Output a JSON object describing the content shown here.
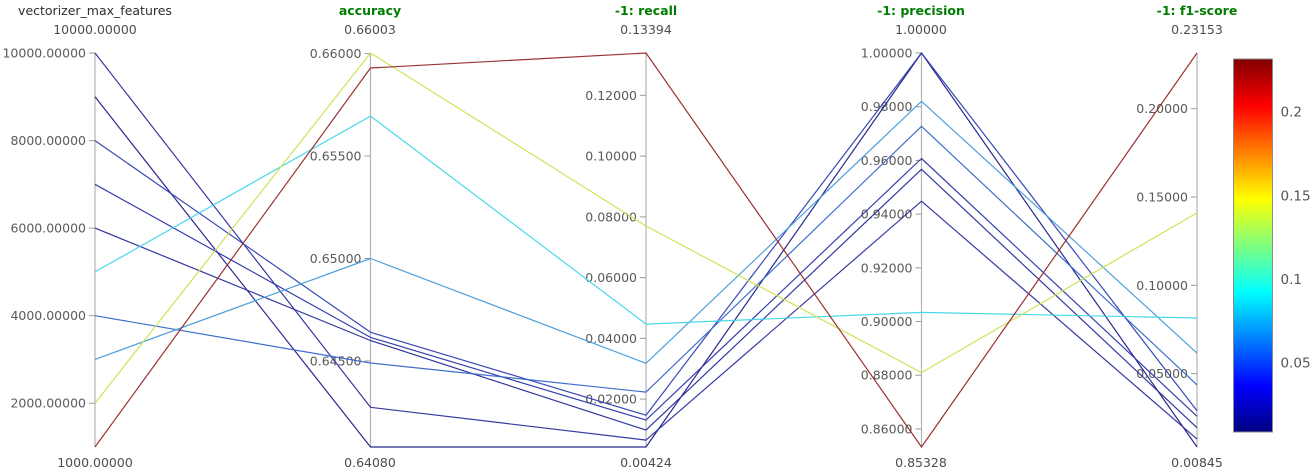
{
  "chart_data": {
    "type": "parallel-coordinates",
    "title": "",
    "color_metric": "-1: f1-score",
    "colormap": "jet",
    "grid": false,
    "axes": [
      {
        "key": "vectorizer_max_features",
        "title": "vectorizer_max_features",
        "metric": false,
        "max": 10000,
        "min": 1000,
        "max_label": "10000.00000",
        "min_label": "1000.00000",
        "ticks": [
          {
            "v": 10000,
            "label": "10000.00000"
          },
          {
            "v": 8000,
            "label": "8000.00000"
          },
          {
            "v": 6000,
            "label": "6000.00000"
          },
          {
            "v": 4000,
            "label": "4000.00000"
          },
          {
            "v": 2000,
            "label": "2000.00000"
          }
        ]
      },
      {
        "key": "accuracy",
        "title": "accuracy",
        "metric": true,
        "max": 0.66003,
        "min": 0.6408,
        "max_label": "0.66003",
        "min_label": "0.64080",
        "ticks": [
          {
            "v": 0.66,
            "label": "0.66000"
          },
          {
            "v": 0.655,
            "label": "0.65500"
          },
          {
            "v": 0.65,
            "label": "0.65000"
          },
          {
            "v": 0.645,
            "label": "0.64500"
          }
        ]
      },
      {
        "key": "recall",
        "title": "-1: recall",
        "metric": true,
        "max": 0.13394,
        "min": 0.00424,
        "max_label": "0.13394",
        "min_label": "0.00424",
        "ticks": [
          {
            "v": 0.12,
            "label": "0.12000"
          },
          {
            "v": 0.1,
            "label": "0.10000"
          },
          {
            "v": 0.08,
            "label": "0.08000"
          },
          {
            "v": 0.06,
            "label": "0.06000"
          },
          {
            "v": 0.04,
            "label": "0.04000"
          },
          {
            "v": 0.02,
            "label": "0.02000"
          }
        ]
      },
      {
        "key": "precision",
        "title": "-1: precision",
        "metric": true,
        "max": 1.0,
        "min": 0.85328,
        "max_label": "1.00000",
        "min_label": "0.85328",
        "ticks": [
          {
            "v": 1.0,
            "label": "1.00000"
          },
          {
            "v": 0.98,
            "label": "0.98000"
          },
          {
            "v": 0.96,
            "label": "0.96000"
          },
          {
            "v": 0.94,
            "label": "0.94000"
          },
          {
            "v": 0.92,
            "label": "0.92000"
          },
          {
            "v": 0.9,
            "label": "0.90000"
          },
          {
            "v": 0.88,
            "label": "0.88000"
          },
          {
            "v": 0.86,
            "label": "0.86000"
          }
        ]
      },
      {
        "key": "f1_score",
        "title": "-1: f1-score",
        "metric": true,
        "max": 0.23153,
        "min": 0.00845,
        "max_label": "0.23153",
        "min_label": "0.00845",
        "ticks": [
          {
            "v": 0.2,
            "label": "0.20000"
          },
          {
            "v": 0.15,
            "label": "0.15000"
          },
          {
            "v": 0.1,
            "label": "0.10000"
          },
          {
            "v": 0.05,
            "label": "0.05000"
          }
        ]
      }
    ],
    "rows": [
      {
        "values": [
          1000,
          0.6593,
          0.13394,
          0.85328,
          0.23153
        ],
        "color": "#962727"
      },
      {
        "values": [
          2000,
          0.66003,
          0.077,
          0.881,
          0.141
        ],
        "color": "#cde04e"
      },
      {
        "values": [
          3000,
          0.65,
          0.0318,
          0.982,
          0.0616
        ],
        "color": "#449bda"
      },
      {
        "values": [
          4000,
          0.6449,
          0.0223,
          0.9727,
          0.0436
        ],
        "color": "#3566c8"
      },
      {
        "values": [
          5000,
          0.65695,
          0.0447,
          0.9034,
          0.0815
        ],
        "color": "#3fd6e8"
      },
      {
        "values": [
          6000,
          0.646,
          0.0098,
          0.9567,
          0.0194
        ],
        "color": "#262d98"
      },
      {
        "values": [
          7000,
          0.64615,
          0.0131,
          0.9607,
          0.02585
        ],
        "color": "#2a36a8"
      },
      {
        "values": [
          8000,
          0.6464,
          0.0147,
          1.0,
          0.02897
        ],
        "color": "#2e3fb1"
      },
      {
        "values": [
          9000,
          0.6408,
          0.00424,
          1.0,
          0.00845
        ],
        "color": "#201d86"
      },
      {
        "values": [
          10000,
          0.64274,
          0.0065,
          0.9448,
          0.0129
        ],
        "color": "#2b2f9c"
      }
    ],
    "colorbar": {
      "min": 0.00845,
      "max": 0.23153,
      "ticks": [
        {
          "v": 0.2,
          "label": "0.2"
        },
        {
          "v": 0.15,
          "label": "0.15"
        },
        {
          "v": 0.1,
          "label": "0.1"
        },
        {
          "v": 0.05,
          "label": "0.05"
        }
      ],
      "gradient_stops_top_to_bottom": [
        "#800000",
        "#ff0000",
        "#ffff00",
        "#00ffff",
        "#0000ff",
        "#000080"
      ],
      "gradient_offsets": [
        0,
        0.125,
        0.375,
        0.625,
        0.875,
        1
      ]
    }
  }
}
